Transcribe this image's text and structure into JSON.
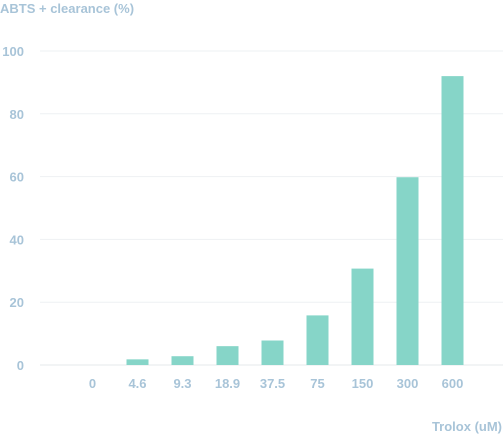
{
  "chart_data": {
    "type": "bar",
    "title": "",
    "ylabel": "ABTS + clearance (%)",
    "xlabel": "Trolox (uM)",
    "categories": [
      "0",
      "4.6",
      "9.3",
      "18.9",
      "37.5",
      "75",
      "150",
      "300",
      "600"
    ],
    "values": [
      0,
      1.8,
      2.8,
      6,
      7.8,
      15.8,
      30.7,
      59.8,
      92
    ],
    "ylim": [
      0,
      100
    ],
    "yticks": [
      "0",
      "20",
      "40",
      "60",
      "80",
      "100"
    ],
    "grid": true,
    "legend": "none",
    "colors": {
      "bar": "#86d5c8",
      "grid": "#eef1f3",
      "axis_text": "#a8c4d8",
      "baseline": "#e4e8eb"
    }
  }
}
